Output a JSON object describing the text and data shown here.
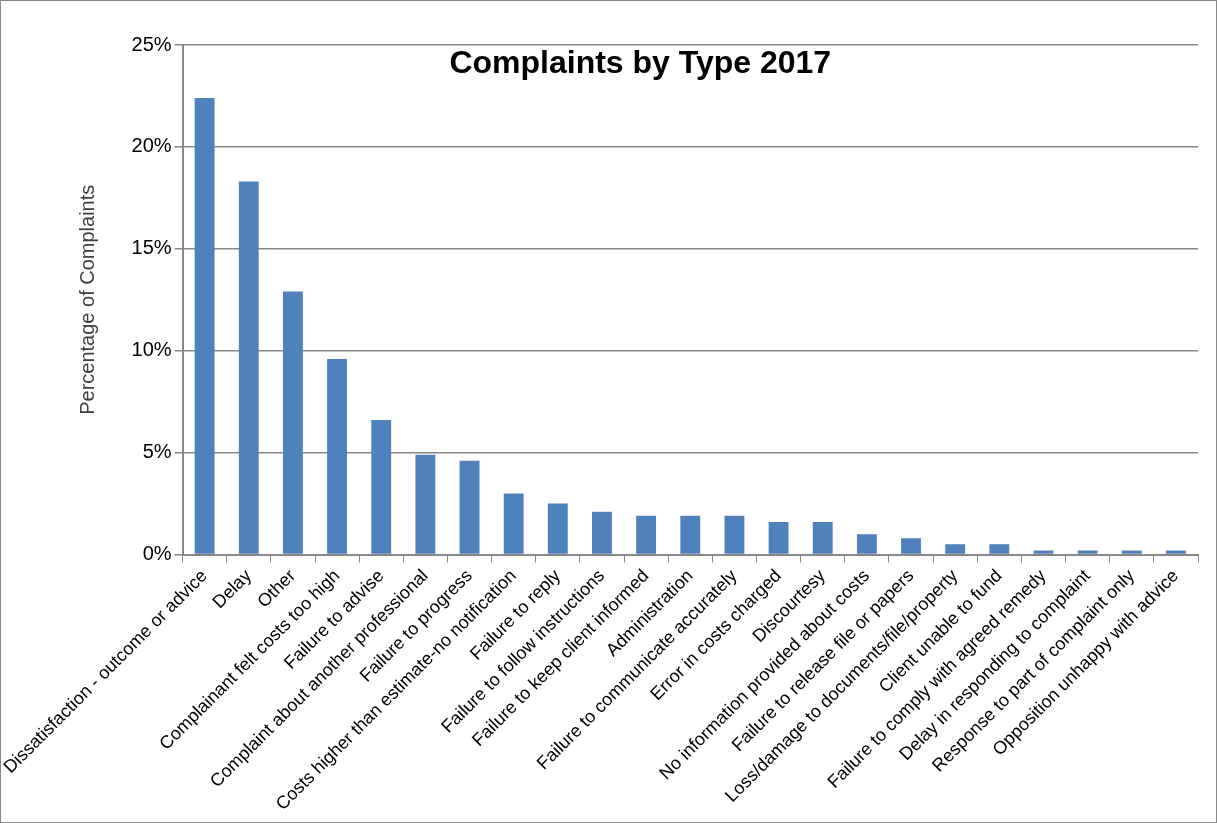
{
  "chart_data": {
    "type": "bar",
    "title": "Complaints by Type 2017",
    "ylabel": "Percentage of Complaints",
    "categories": [
      "Dissatisfaction - outcome or advice",
      "Delay",
      "Other",
      "Complainant felt costs too high",
      "Failure to advise",
      "Complaint about another professional",
      "Failure to progress",
      "Costs higher than estimate-no notification",
      "Failure to reply",
      "Failure to follow instructions",
      "Failure to keep client informed",
      "Administration",
      "Failure to communicate accurately",
      "Error in costs charged",
      "Discourtesy",
      "No information provided about costs",
      "Failure to release file or papers",
      "Loss/damage to documents/file/property",
      "Client unable to fund",
      "Failure to comply with agreed remedy",
      "Delay in responding to complaint",
      "Response to part of complaint only",
      "Opposition unhappy with advice"
    ],
    "values": [
      22.4,
      18.3,
      12.9,
      9.6,
      6.6,
      4.9,
      4.6,
      3.0,
      2.5,
      2.1,
      1.9,
      1.9,
      1.9,
      1.6,
      1.6,
      1.0,
      0.8,
      0.5,
      0.5,
      0.2,
      0.2,
      0.2,
      0.2
    ],
    "color": "#4f81bd",
    "ylim": [
      0,
      25
    ],
    "yticks": [
      {
        "value": 0,
        "label": "0%"
      },
      {
        "value": 5,
        "label": "5%"
      },
      {
        "value": 10,
        "label": "10%"
      },
      {
        "value": 15,
        "label": "15%"
      },
      {
        "value": 20,
        "label": "20%"
      },
      {
        "value": 25,
        "label": "25%"
      }
    ],
    "grid": "y",
    "legend": false
  }
}
